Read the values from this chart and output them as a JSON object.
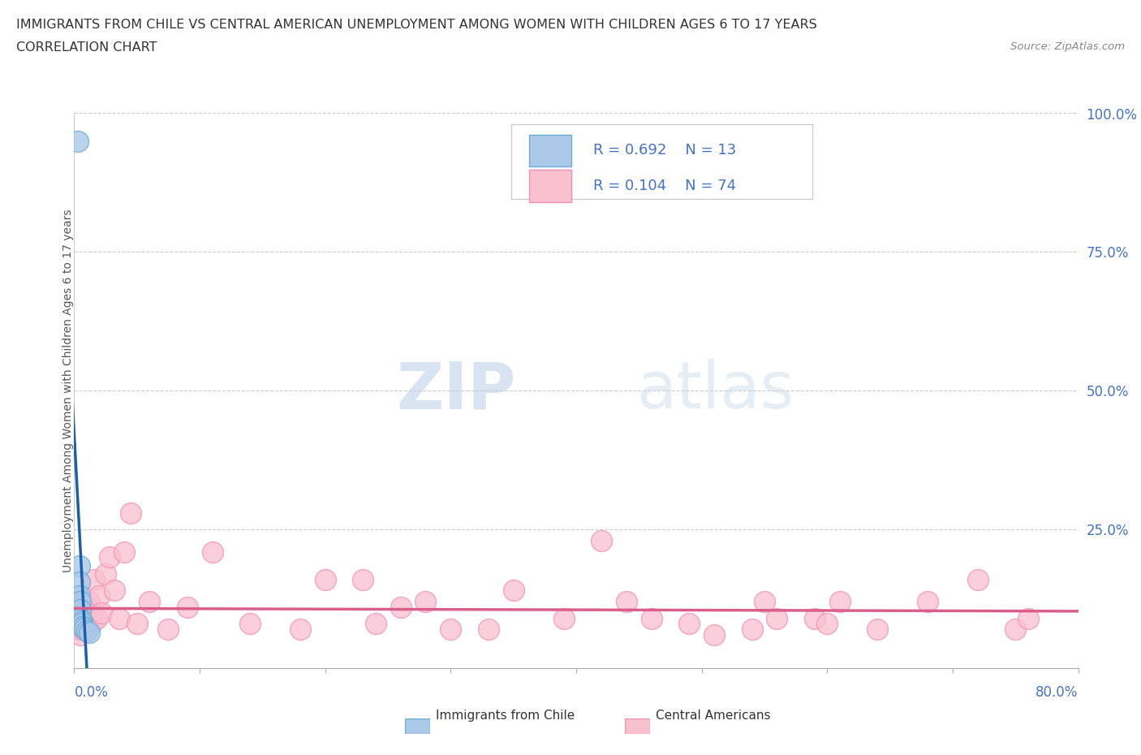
{
  "title_line1": "IMMIGRANTS FROM CHILE VS CENTRAL AMERICAN UNEMPLOYMENT AMONG WOMEN WITH CHILDREN AGES 6 TO 17 YEARS",
  "title_line2": "CORRELATION CHART",
  "source": "Source: ZipAtlas.com",
  "ylabel_label": "Unemployment Among Women with Children Ages 6 to 17 years",
  "xlim": [
    0,
    0.8
  ],
  "ylim": [
    0,
    1.0
  ],
  "watermark_zip": "ZIP",
  "watermark_atlas": "atlas",
  "legend_blue_label": "Immigrants from Chile",
  "legend_pink_label": "Central Americans",
  "r_blue": 0.692,
  "n_blue": 13,
  "r_pink": 0.104,
  "n_pink": 74,
  "blue_scatter_color": "#aac8e8",
  "blue_edge_color": "#6baed6",
  "pink_scatter_color": "#f9c0d0",
  "pink_edge_color": "#f48fb1",
  "blue_line_color": "#1a5fa8",
  "pink_line_color": "#d95f8a",
  "label_color": "#4472c4",
  "title_color": "#333333",
  "grid_color": "#cccccc",
  "chile_x": [
    0.003,
    0.004,
    0.004,
    0.004,
    0.005,
    0.005,
    0.005,
    0.006,
    0.006,
    0.007,
    0.008,
    0.01,
    0.012
  ],
  "chile_y": [
    0.95,
    0.185,
    0.155,
    0.13,
    0.12,
    0.105,
    0.09,
    0.085,
    0.08,
    0.075,
    0.072,
    0.068,
    0.065
  ],
  "central_x": [
    0.003,
    0.003,
    0.003,
    0.004,
    0.004,
    0.004,
    0.004,
    0.004,
    0.005,
    0.005,
    0.005,
    0.005,
    0.005,
    0.005,
    0.006,
    0.006,
    0.006,
    0.006,
    0.007,
    0.007,
    0.007,
    0.008,
    0.008,
    0.008,
    0.009,
    0.009,
    0.01,
    0.01,
    0.011,
    0.012,
    0.013,
    0.014,
    0.016,
    0.018,
    0.02,
    0.022,
    0.025,
    0.028,
    0.032,
    0.036,
    0.04,
    0.045,
    0.05,
    0.06,
    0.075,
    0.09,
    0.11,
    0.14,
    0.18,
    0.23,
    0.28,
    0.33,
    0.39,
    0.44,
    0.49,
    0.54,
    0.59,
    0.64,
    0.68,
    0.72,
    0.75,
    0.76,
    0.55,
    0.6,
    0.35,
    0.42,
    0.46,
    0.51,
    0.56,
    0.61,
    0.26,
    0.3,
    0.2,
    0.24
  ],
  "central_y": [
    0.09,
    0.07,
    0.1,
    0.08,
    0.12,
    0.07,
    0.1,
    0.08,
    0.09,
    0.11,
    0.07,
    0.08,
    0.1,
    0.06,
    0.12,
    0.08,
    0.09,
    0.11,
    0.09,
    0.07,
    0.1,
    0.08,
    0.12,
    0.07,
    0.09,
    0.1,
    0.08,
    0.11,
    0.09,
    0.12,
    0.1,
    0.08,
    0.16,
    0.09,
    0.13,
    0.1,
    0.17,
    0.2,
    0.14,
    0.09,
    0.21,
    0.28,
    0.08,
    0.12,
    0.07,
    0.11,
    0.21,
    0.08,
    0.07,
    0.16,
    0.12,
    0.07,
    0.09,
    0.12,
    0.08,
    0.07,
    0.09,
    0.07,
    0.12,
    0.16,
    0.07,
    0.09,
    0.12,
    0.08,
    0.14,
    0.23,
    0.09,
    0.06,
    0.09,
    0.12,
    0.11,
    0.07,
    0.16,
    0.08
  ]
}
